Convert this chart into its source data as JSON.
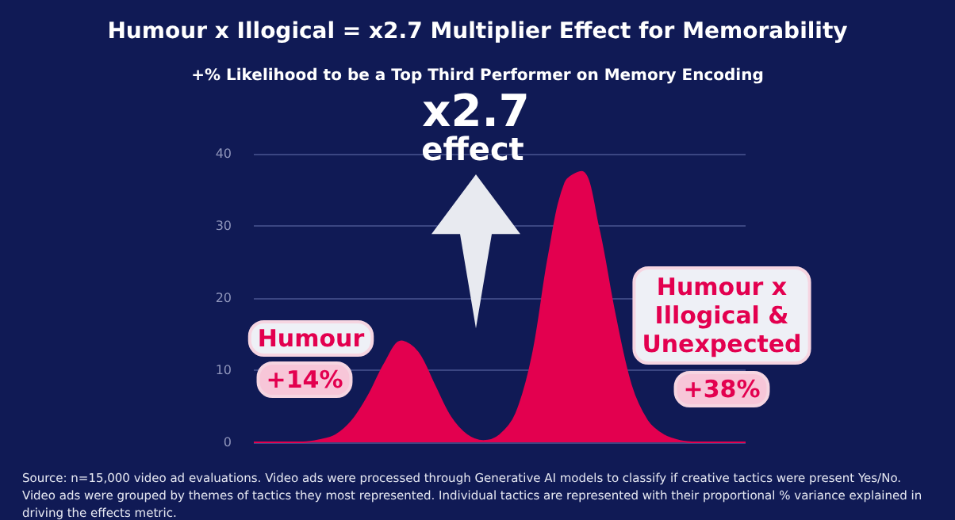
{
  "chart_data": {
    "type": "area",
    "title": "Humour x Illogical = x2.7 Multiplier Effect for Memorability",
    "subtitle": "+% Likelihood to be a Top Third Performer on Memory Encoding",
    "categories": [
      null,
      null,
      null,
      null,
      null,
      null,
      null,
      null,
      null,
      null,
      null,
      null,
      null,
      null,
      null,
      null,
      null,
      null,
      null,
      null,
      null,
      null,
      null,
      null,
      null,
      null,
      null,
      null,
      null,
      null,
      null
    ],
    "values": [
      0,
      0,
      0,
      0,
      0.3,
      1,
      3,
      6.5,
      11,
      14,
      12.5,
      8,
      3.5,
      1,
      0.2,
      1,
      4,
      12,
      26,
      36,
      37.5,
      30,
      18,
      8,
      3,
      1,
      0.2,
      0,
      0,
      0,
      0
    ],
    "color": "#e3004f",
    "ylim": [
      0,
      40
    ],
    "yticks": [
      0,
      10,
      20,
      30,
      40
    ],
    "grid": "y",
    "marker": "none",
    "annotations": [
      "x2.7",
      "effect",
      "Humour",
      "+14%",
      "Humour x\nIllogical &\nUnexpected",
      "+38%",
      "Source: n=15,000 video ad evaluations. Video ads were processed through Generative AI models to classify if creative tactics were present Yes/No. Video ads were grouped by themes of tactics they most represented. Individual tactics are represented with their proportional % variance explained in driving the effects metric."
    ]
  }
}
